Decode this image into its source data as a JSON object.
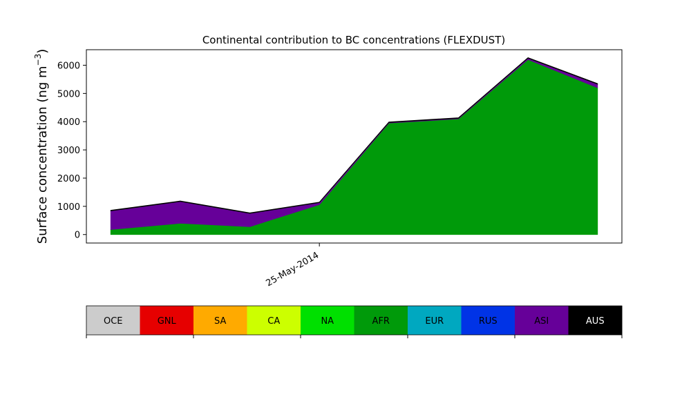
{
  "chart_data": {
    "type": "area",
    "title": "Continental contribution to BC concentrations (FLEXDUST)",
    "ylabel_text": "Surface concentration (ng m",
    "ylabel_sup": "−3",
    "ylabel_close": ")",
    "xlabel": "",
    "ylim": [
      -300,
      6550
    ],
    "yticks": [
      0,
      1000,
      2000,
      3000,
      4000,
      5000,
      6000
    ],
    "xlim": [
      -0.35,
      7.35
    ],
    "x_tick_labels": [
      {
        "x": 3,
        "label": "25-May-2014"
      }
    ],
    "x": [
      0,
      1,
      2,
      3,
      4,
      5,
      6,
      7
    ],
    "stack_order": [
      "OCE",
      "GNL",
      "SA",
      "CA",
      "NA",
      "AFR",
      "EUR",
      "RUS",
      "ASI",
      "AUS"
    ],
    "series": [
      {
        "name": "OCE",
        "color": "#cccccc",
        "values": [
          0,
          0,
          0,
          0,
          0,
          0,
          0,
          0
        ]
      },
      {
        "name": "GNL",
        "color": "#e60000",
        "values": [
          0,
          0,
          0,
          0,
          0,
          0,
          0,
          0
        ]
      },
      {
        "name": "SA",
        "color": "#ffaa00",
        "values": [
          0,
          0,
          0,
          0,
          0,
          0,
          0,
          0
        ]
      },
      {
        "name": "CA",
        "color": "#ccff00",
        "values": [
          0,
          0,
          0,
          0,
          0,
          0,
          0,
          0
        ]
      },
      {
        "name": "NA",
        "color": "#00e000",
        "values": [
          0,
          0,
          0,
          0,
          0,
          0,
          0,
          0
        ]
      },
      {
        "name": "AFR",
        "color": "#009a0a",
        "values": [
          180,
          400,
          280,
          1060,
          3950,
          4100,
          6200,
          5200
        ]
      },
      {
        "name": "EUR",
        "color": "#00a8c0",
        "values": [
          0,
          0,
          0,
          0,
          0,
          0,
          0,
          0
        ]
      },
      {
        "name": "RUS",
        "color": "#0033e6",
        "values": [
          0,
          0,
          0,
          0,
          0,
          0,
          0,
          0
        ]
      },
      {
        "name": "ASI",
        "color": "#660099",
        "values": [
          660,
          770,
          470,
          70,
          20,
          20,
          50,
          130
        ]
      },
      {
        "name": "AUS",
        "color": "#000000",
        "values": [
          20,
          20,
          20,
          20,
          20,
          20,
          20,
          20
        ]
      }
    ],
    "legend_placement": "bottom",
    "grid": false
  }
}
